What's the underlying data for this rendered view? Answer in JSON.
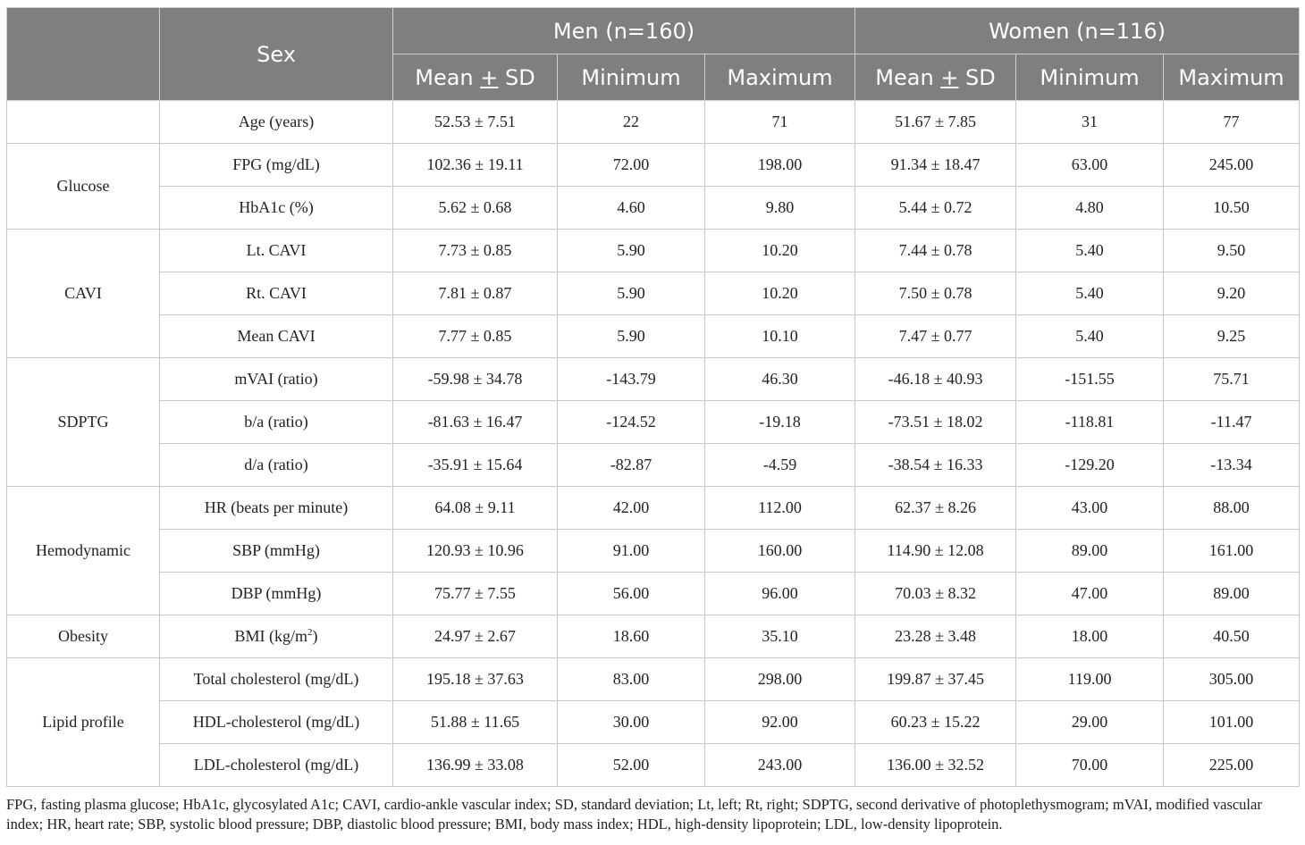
{
  "header": {
    "sex_label": "Sex",
    "men_group": "Men (n=160)",
    "women_group": "Women (n=116)",
    "mean_pre": "Mean ",
    "mean_pm": "+",
    "mean_post": " SD",
    "min_label": "Minimum",
    "max_label": "Maximum"
  },
  "groups": {
    "glucose": "Glucose",
    "cavi": "CAVI",
    "sdptg": "SDPTG",
    "hemodynamic": "Hemodynamic",
    "obesity": "Obesity",
    "lipid": "Lipid profile"
  },
  "rows": [
    {
      "variable": "Age (years)",
      "men_mean": "52.53 ± 7.51",
      "men_min": "22",
      "men_max": "71",
      "women_mean": "51.67 ± 7.85",
      "women_min": "31",
      "women_max": "77"
    },
    {
      "variable": "FPG (mg/dL)",
      "men_mean": "102.36 ± 19.11",
      "men_min": "72.00",
      "men_max": "198.00",
      "women_mean": "91.34 ± 18.47",
      "women_min": "63.00",
      "women_max": "245.00"
    },
    {
      "variable": "HbA1c (%)",
      "men_mean": "5.62 ± 0.68",
      "men_min": "4.60",
      "men_max": "9.80",
      "women_mean": "5.44 ± 0.72",
      "women_min": "4.80",
      "women_max": "10.50"
    },
    {
      "variable": "Lt. CAVI",
      "men_mean": "7.73 ± 0.85",
      "men_min": "5.90",
      "men_max": "10.20",
      "women_mean": "7.44 ± 0.78",
      "women_min": "5.40",
      "women_max": "9.50"
    },
    {
      "variable": "Rt. CAVI",
      "men_mean": "7.81 ± 0.87",
      "men_min": "5.90",
      "men_max": "10.20",
      "women_mean": "7.50 ± 0.78",
      "women_min": "5.40",
      "women_max": "9.20"
    },
    {
      "variable": "Mean CAVI",
      "men_mean": "7.77 ± 0.85",
      "men_min": "5.90",
      "men_max": "10.10",
      "women_mean": "7.47 ± 0.77",
      "women_min": "5.40",
      "women_max": "9.25"
    },
    {
      "variable": "mVAI (ratio)",
      "men_mean": "-59.98 ± 34.78",
      "men_min": "-143.79",
      "men_max": "46.30",
      "women_mean": "-46.18 ± 40.93",
      "women_min": "-151.55",
      "women_max": "75.71"
    },
    {
      "variable": "b/a (ratio)",
      "men_mean": "-81.63 ± 16.47",
      "men_min": "-124.52",
      "men_max": "-19.18",
      "women_mean": "-73.51 ± 18.02",
      "women_min": "-118.81",
      "women_max": "-11.47"
    },
    {
      "variable": "d/a (ratio)",
      "men_mean": "-35.91 ± 15.64",
      "men_min": "-82.87",
      "men_max": "-4.59",
      "women_mean": "-38.54 ± 16.33",
      "women_min": "-129.20",
      "women_max": "-13.34"
    },
    {
      "variable": "HR (beats per minute)",
      "men_mean": "64.08 ± 9.11",
      "men_min": "42.00",
      "men_max": "112.00",
      "women_mean": "62.37 ± 8.26",
      "women_min": "43.00",
      "women_max": "88.00"
    },
    {
      "variable": "SBP (mmHg)",
      "men_mean": "120.93 ± 10.96",
      "men_min": "91.00",
      "men_max": "160.00",
      "women_mean": "114.90 ± 12.08",
      "women_min": "89.00",
      "women_max": "161.00"
    },
    {
      "variable": "DBP (mmHg)",
      "men_mean": "75.77 ± 7.55",
      "men_min": "56.00",
      "men_max": "96.00",
      "women_mean": "70.03 ± 8.32",
      "women_min": "47.00",
      "women_max": "89.00"
    },
    {
      "variable_pre": "BMI (kg/m",
      "variable_sup": "2",
      "variable_post": ")",
      "men_mean": "24.97 ± 2.67",
      "men_min": "18.60",
      "men_max": "35.10",
      "women_mean": "23.28 ± 3.48",
      "women_min": "18.00",
      "women_max": "40.50"
    },
    {
      "variable": "Total cholesterol (mg/dL)",
      "men_mean": "195.18 ± 37.63",
      "men_min": "83.00",
      "men_max": "298.00",
      "women_mean": "199.87 ± 37.45",
      "women_min": "119.00",
      "women_max": "305.00"
    },
    {
      "variable": "HDL-cholesterol (mg/dL)",
      "men_mean": "51.88 ± 11.65",
      "men_min": "30.00",
      "men_max": "92.00",
      "women_mean": "60.23 ± 15.22",
      "women_min": "29.00",
      "women_max": "101.00"
    },
    {
      "variable": "LDL-cholesterol (mg/dL)",
      "men_mean": "136.99 ± 33.08",
      "men_min": "52.00",
      "men_max": "243.00",
      "women_mean": "136.00 ± 32.52",
      "women_min": "70.00",
      "women_max": "225.00"
    }
  ],
  "footnote": "FPG, fasting plasma glucose; HbA1c, glycosylated A1c; CAVI, cardio-ankle vascular index; SD, standard deviation; Lt, left; Rt, right; SDPTG, second derivative of photoplethysmogram; mVAI, modified vascular index; HR, heart rate; SBP, systolic blood pressure; DBP, diastolic blood pressure; BMI, body mass index; HDL, high-density lipoprotein; LDL, low-density lipoprotein."
}
